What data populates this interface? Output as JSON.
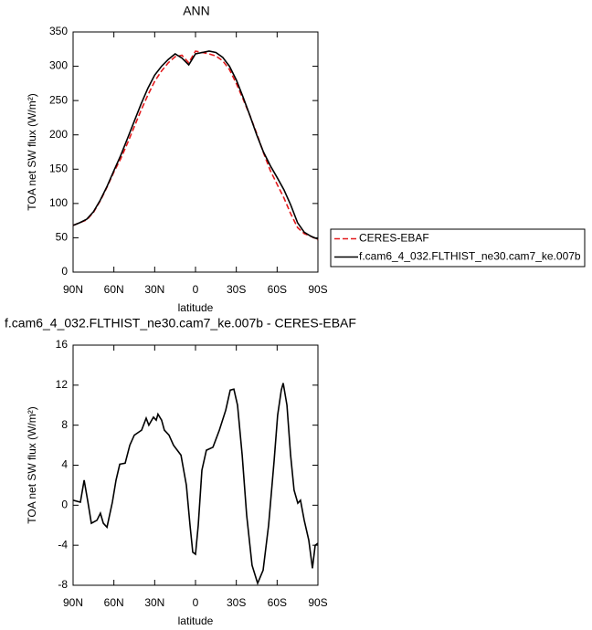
{
  "chart_data": [
    {
      "type": "line",
      "title": "ANN",
      "x_label": "latitude",
      "y_label": "TOA net SW flux (W/m²)",
      "x": [
        90,
        85,
        80,
        75,
        70,
        65,
        60,
        55,
        50,
        45,
        40,
        35,
        30,
        25,
        20,
        15,
        10,
        5,
        0,
        -5,
        -10,
        -15,
        -20,
        -25,
        -30,
        -35,
        -40,
        -45,
        -50,
        -55,
        -60,
        -65,
        -70,
        -75,
        -80,
        -85,
        -90
      ],
      "series": [
        {
          "name": "CERES-EBAF",
          "color": "#e41a1c",
          "linestyle": "dashed",
          "values": [
            68,
            72,
            76,
            87,
            104,
            124,
            146,
            165,
            188,
            212,
            236,
            258,
            278,
            293,
            305,
            314,
            316,
            305,
            322,
            320,
            318,
            315,
            308,
            295,
            275,
            252,
            228,
            202,
            174,
            148,
            128,
            108,
            85,
            65,
            56,
            52,
            47
          ]
        },
        {
          "name": "f.cam6_4_032.FLTHIST_ne30.cam7_ke.007b",
          "color": "#000000",
          "linestyle": "solid",
          "values": [
            68,
            72,
            77,
            88,
            105,
            125,
            148,
            170,
            195,
            220,
            245,
            268,
            287,
            300,
            310,
            318,
            312,
            302,
            318,
            320,
            322,
            320,
            313,
            300,
            280,
            255,
            228,
            200,
            175,
            155,
            138,
            120,
            98,
            72,
            58,
            52,
            48
          ]
        }
      ],
      "xlim": [
        90,
        -90
      ],
      "xticks": [
        {
          "value": 90,
          "label": "90N"
        },
        {
          "value": 60,
          "label": "60N"
        },
        {
          "value": 30,
          "label": "30N"
        },
        0,
        {
          "value": -30,
          "label": "30S"
        },
        {
          "value": -60,
          "label": "60S"
        },
        {
          "value": -90,
          "label": "90S"
        }
      ],
      "ylim": [
        0,
        350
      ],
      "yticks": [
        0,
        50,
        100,
        150,
        200,
        250,
        300,
        350
      ],
      "legend": "outside-right"
    },
    {
      "type": "line",
      "title": "f.cam6_4_032.FLTHIST_ne30.cam7_ke.007b - CERES-EBAF",
      "x_label": "latitude",
      "y_label": "TOA net SW flux (W/m²)",
      "x": [
        90,
        84.6,
        81.9,
        79.3,
        76.6,
        72.5,
        69.9,
        67.8,
        65.1,
        61.1,
        58.4,
        55.7,
        51.7,
        48.3,
        45,
        39.6,
        36.3,
        34.3,
        30.9,
        28.9,
        27.6,
        24.9,
        22.9,
        19.5,
        16.2,
        10.7,
        6.7,
        4,
        2,
        0,
        -2,
        -4.7,
        -8,
        -12.8,
        -17.5,
        -22.2,
        -25.5,
        -28.2,
        -30.9,
        -34.3,
        -37.6,
        -41.6,
        -45.7,
        -49.7,
        -53.7,
        -57.8,
        -60.4,
        -63.1,
        -64.5,
        -67.2,
        -69.9,
        -72.5,
        -75.2,
        -77.2,
        -79.9,
        -83.3,
        -86,
        -88,
        -90
      ],
      "values": [
        0.5,
        0.3,
        2.5,
        0.5,
        -1.8,
        -1.5,
        -0.8,
        -1.8,
        -2.2,
        0.3,
        2.5,
        4.1,
        4.2,
        6,
        7,
        7.5,
        8.7,
        8,
        8.8,
        8.5,
        9.1,
        8.5,
        7.5,
        7,
        6,
        5,
        2,
        -2,
        -4.7,
        -4.9,
        -2,
        3.5,
        5.5,
        5.8,
        7.5,
        9.5,
        11.5,
        11.6,
        10,
        5,
        -1,
        -6,
        -7.8,
        -6.5,
        -2,
        4.5,
        9,
        11.5,
        12.2,
        10,
        5,
        1.5,
        0.2,
        0.5,
        -1.5,
        -3.5,
        -6.3,
        -4,
        -3.8
      ],
      "color": "#000000",
      "xlim": [
        90,
        -90
      ],
      "xticks": [
        {
          "value": 90,
          "label": "90N"
        },
        {
          "value": 60,
          "label": "60N"
        },
        {
          "value": 30,
          "label": "30N"
        },
        0,
        {
          "value": -30,
          "label": "30S"
        },
        {
          "value": -60,
          "label": "60S"
        },
        {
          "value": -90,
          "label": "90S"
        }
      ],
      "ylim": [
        -8,
        16
      ],
      "yticks": [
        -8,
        -4,
        0,
        4,
        8,
        12,
        16
      ]
    }
  ]
}
